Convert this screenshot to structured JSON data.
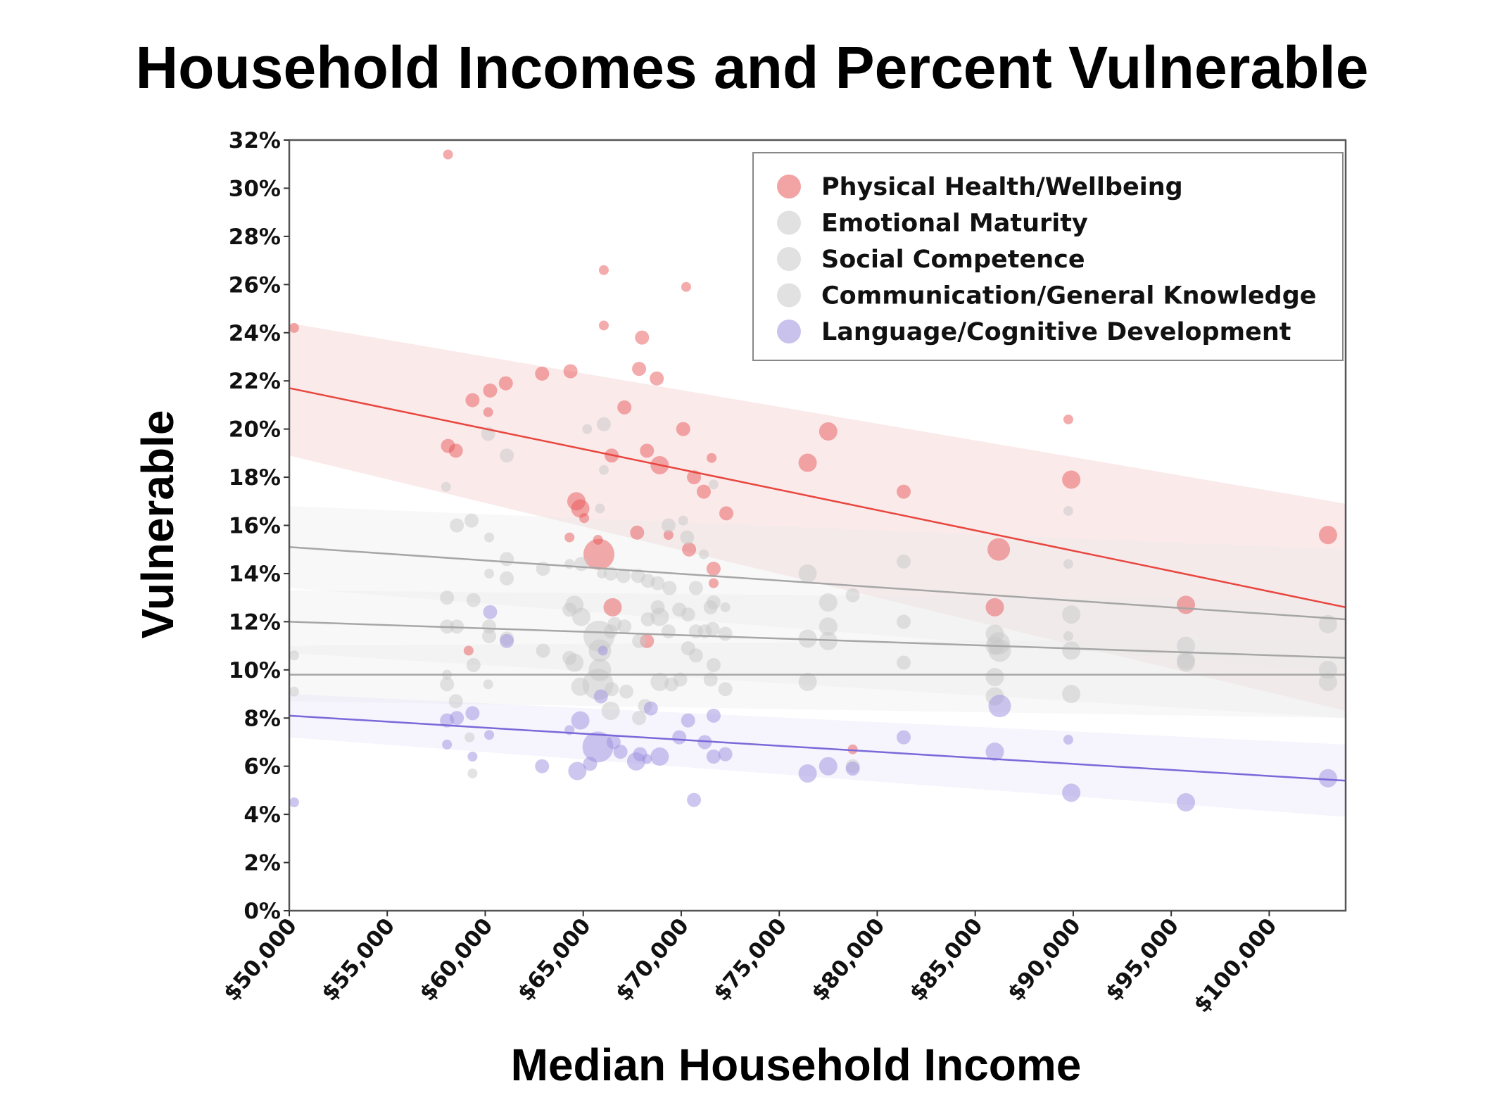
{
  "chart_data": {
    "type": "scatter",
    "title": "Household Incomes and Percent Vulnerable",
    "xlabel": "Median Household Income",
    "ylabel": "Vulnerable",
    "xlim": [
      50000,
      103900
    ],
    "ylim": [
      0,
      32
    ],
    "x_ticks": [
      50000,
      55000,
      60000,
      65000,
      70000,
      75000,
      80000,
      85000,
      90000,
      95000,
      100000
    ],
    "x_tick_labels": [
      "$50,000",
      "$55,000",
      "$60,000",
      "$65,000",
      "$70,000",
      "$75,000",
      "$80,000",
      "$85,000",
      "$90,000",
      "$95,000",
      "$100,000"
    ],
    "y_ticks": [
      0,
      2,
      4,
      6,
      8,
      10,
      12,
      14,
      16,
      18,
      20,
      22,
      24,
      26,
      28,
      30,
      32
    ],
    "y_tick_labels": [
      "0%",
      "2%",
      "4%",
      "6%",
      "8%",
      "10%",
      "12%",
      "14%",
      "16%",
      "18%",
      "20%",
      "22%",
      "24%",
      "26%",
      "28%",
      "30%",
      "32%"
    ],
    "grid": false,
    "legend_position": "top-right",
    "marker_size_meaning": "relative population size (bubble)",
    "series": [
      {
        "name": "Physical Health/Wellbeing",
        "color": "#e8575a",
        "line_color": "#e8463f",
        "band_color": "#f7d0d1",
        "trend": {
          "start": [
            50000,
            21.7
          ],
          "end": [
            103900,
            12.6
          ],
          "ci_start": [
            18.9,
            24.4
          ],
          "ci_end": [
            8.3,
            16.9
          ]
        },
        "points": [
          [
            50250,
            24.2,
            1
          ],
          [
            58100,
            31.4,
            1
          ],
          [
            58100,
            19.3,
            2
          ],
          [
            58500,
            19.1,
            2
          ],
          [
            59350,
            21.2,
            2
          ],
          [
            60250,
            21.6,
            2
          ],
          [
            60150,
            20.7,
            1
          ],
          [
            61050,
            21.9,
            2
          ],
          [
            62900,
            22.3,
            2
          ],
          [
            64350,
            22.4,
            2
          ],
          [
            64300,
            15.5,
            1
          ],
          [
            64650,
            17.0,
            3
          ],
          [
            64850,
            16.7,
            3
          ],
          [
            65050,
            16.3,
            1
          ],
          [
            65800,
            14.8,
            6
          ],
          [
            65750,
            15.4,
            1
          ],
          [
            66050,
            24.3,
            1
          ],
          [
            66050,
            26.6,
            1
          ],
          [
            66450,
            18.9,
            2
          ],
          [
            66500,
            12.6,
            3
          ],
          [
            67100,
            20.9,
            2
          ],
          [
            67750,
            15.7,
            2
          ],
          [
            67850,
            22.5,
            2
          ],
          [
            68000,
            23.8,
            2
          ],
          [
            68250,
            19.1,
            2
          ],
          [
            68250,
            11.2,
            2
          ],
          [
            68750,
            22.1,
            2
          ],
          [
            68900,
            18.5,
            3
          ],
          [
            69350,
            15.6,
            1
          ],
          [
            70100,
            20.0,
            2
          ],
          [
            70250,
            25.9,
            1
          ],
          [
            70400,
            15.0,
            2
          ],
          [
            70650,
            18.0,
            2
          ],
          [
            71150,
            17.4,
            2
          ],
          [
            71550,
            18.8,
            1
          ],
          [
            71650,
            13.6,
            1
          ],
          [
            71650,
            14.2,
            2
          ],
          [
            72300,
            16.5,
            2
          ],
          [
            59150,
            10.8,
            1
          ],
          [
            76450,
            18.6,
            3
          ],
          [
            77500,
            19.9,
            3
          ],
          [
            78750,
            6.7,
            1
          ],
          [
            81350,
            17.4,
            2
          ],
          [
            86000,
            12.6,
            3
          ],
          [
            86200,
            15.0,
            4
          ],
          [
            89750,
            20.4,
            1
          ],
          [
            89900,
            17.9,
            3
          ],
          [
            95750,
            12.7,
            3
          ],
          [
            103000,
            15.6,
            3
          ]
        ]
      },
      {
        "name": "Emotional Maturity",
        "color": "#c8c8c8",
        "line_color": "#a6a6a6",
        "band_color": "#ececec",
        "trend": {
          "start": [
            50000,
            15.1
          ],
          "end": [
            103900,
            12.1
          ],
          "ci_start": [
            13.4,
            16.8
          ],
          "ci_end": [
            9.9,
            15.0
          ]
        },
        "points": [
          [
            58000,
            17.6,
            1
          ],
          [
            58550,
            16.0,
            2
          ],
          [
            59300,
            16.2,
            2
          ],
          [
            60200,
            15.5,
            1
          ],
          [
            60200,
            14.0,
            1
          ],
          [
            61100,
            14.6,
            2
          ],
          [
            61100,
            13.8,
            2
          ],
          [
            62950,
            14.2,
            2
          ],
          [
            64300,
            14.4,
            1
          ],
          [
            64900,
            14.4,
            2
          ],
          [
            65850,
            16.7,
            1
          ],
          [
            65950,
            14.0,
            1
          ],
          [
            66400,
            14.0,
            2
          ],
          [
            67050,
            13.9,
            2
          ],
          [
            67800,
            13.9,
            2
          ],
          [
            68300,
            13.7,
            2
          ],
          [
            68800,
            13.6,
            2
          ],
          [
            69350,
            16.0,
            2
          ],
          [
            69400,
            13.4,
            2
          ],
          [
            70100,
            16.2,
            1
          ],
          [
            70300,
            15.5,
            2
          ],
          [
            70750,
            13.4,
            2
          ],
          [
            71150,
            14.8,
            1
          ],
          [
            71500,
            12.6,
            2
          ],
          [
            71650,
            17.7,
            1
          ],
          [
            72250,
            12.6,
            1
          ],
          [
            66050,
            20.2,
            2
          ],
          [
            65200,
            20.0,
            1
          ],
          [
            66050,
            18.3,
            1
          ],
          [
            60150,
            19.8,
            2
          ],
          [
            61100,
            18.9,
            2
          ],
          [
            76450,
            14.0,
            3
          ],
          [
            77500,
            12.8,
            3
          ],
          [
            78750,
            13.1,
            2
          ],
          [
            81350,
            14.5,
            2
          ],
          [
            86000,
            11.5,
            3
          ],
          [
            86200,
            11.1,
            4
          ],
          [
            89750,
            16.6,
            1
          ],
          [
            89750,
            14.4,
            1
          ],
          [
            89900,
            12.3,
            3
          ],
          [
            95750,
            11.0,
            3
          ],
          [
            103000,
            11.9,
            3
          ]
        ]
      },
      {
        "name": "Social Competence",
        "color": "#c8c8c8",
        "line_color": "#a6a6a6",
        "band_color": "#ececec",
        "trend": {
          "start": [
            50000,
            12.0
          ],
          "end": [
            103900,
            10.5
          ],
          "ci_start": [
            10.7,
            13.3
          ],
          "ci_end": [
            8.0,
            12.9
          ]
        },
        "points": [
          [
            50250,
            10.6,
            1
          ],
          [
            58050,
            13.0,
            2
          ],
          [
            58050,
            11.8,
            2
          ],
          [
            58550,
            11.8,
            2
          ],
          [
            59400,
            12.9,
            2
          ],
          [
            60200,
            11.8,
            2
          ],
          [
            60200,
            11.4,
            2
          ],
          [
            61100,
            11.3,
            2
          ],
          [
            62950,
            10.8,
            2
          ],
          [
            64300,
            12.5,
            2
          ],
          [
            64550,
            12.7,
            3
          ],
          [
            64900,
            12.2,
            3
          ],
          [
            65800,
            11.4,
            6
          ],
          [
            65850,
            10.8,
            4
          ],
          [
            66400,
            11.6,
            2
          ],
          [
            66600,
            11.9,
            2
          ],
          [
            67100,
            11.8,
            2
          ],
          [
            67850,
            11.2,
            2
          ],
          [
            68300,
            12.1,
            2
          ],
          [
            68800,
            12.6,
            2
          ],
          [
            68900,
            12.2,
            3
          ],
          [
            69350,
            11.6,
            2
          ],
          [
            69900,
            12.5,
            2
          ],
          [
            70350,
            12.3,
            2
          ],
          [
            70750,
            11.6,
            2
          ],
          [
            71200,
            11.6,
            2
          ],
          [
            71650,
            12.8,
            2
          ],
          [
            71600,
            11.7,
            2
          ],
          [
            72250,
            11.5,
            2
          ],
          [
            76450,
            11.3,
            3
          ],
          [
            77500,
            11.8,
            3
          ],
          [
            77500,
            11.2,
            3
          ],
          [
            81350,
            12.0,
            2
          ],
          [
            86000,
            11.0,
            3
          ],
          [
            86250,
            10.8,
            4
          ],
          [
            89750,
            11.4,
            1
          ],
          [
            89900,
            10.8,
            3
          ],
          [
            95750,
            10.4,
            3
          ],
          [
            103000,
            10.0,
            3
          ]
        ]
      },
      {
        "name": "Communication/General Knowledge",
        "color": "#c8c8c8",
        "line_color": "#a6a6a6",
        "band_color": "#ececec",
        "trend": {
          "start": [
            50000,
            9.8
          ],
          "end": [
            103900,
            9.8
          ],
          "ci_start": [
            8.7,
            11.0
          ],
          "ci_end": [
            8.0,
            11.3
          ]
        },
        "points": [
          [
            50250,
            9.1,
            1
          ],
          [
            58050,
            9.4,
            2
          ],
          [
            58050,
            9.8,
            1
          ],
          [
            58500,
            8.7,
            2
          ],
          [
            59200,
            7.2,
            1
          ],
          [
            59400,
            10.2,
            2
          ],
          [
            59350,
            5.7,
            1
          ],
          [
            60150,
            9.4,
            1
          ],
          [
            64300,
            10.5,
            2
          ],
          [
            64550,
            10.3,
            3
          ],
          [
            64850,
            9.3,
            3
          ],
          [
            65750,
            9.4,
            6
          ],
          [
            65850,
            10.0,
            4
          ],
          [
            66400,
            8.3,
            3
          ],
          [
            66450,
            9.2,
            2
          ],
          [
            67200,
            9.1,
            2
          ],
          [
            67850,
            8.0,
            2
          ],
          [
            68150,
            8.5,
            2
          ],
          [
            68900,
            9.5,
            3
          ],
          [
            69500,
            9.4,
            2
          ],
          [
            69950,
            9.6,
            2
          ],
          [
            70350,
            10.9,
            2
          ],
          [
            70750,
            10.6,
            2
          ],
          [
            71500,
            9.6,
            2
          ],
          [
            71650,
            10.2,
            2
          ],
          [
            72250,
            9.2,
            2
          ],
          [
            76450,
            9.5,
            3
          ],
          [
            78750,
            6.0,
            2
          ],
          [
            81350,
            10.3,
            2
          ],
          [
            86000,
            9.7,
            3
          ],
          [
            86000,
            8.9,
            3
          ],
          [
            89900,
            9.0,
            3
          ],
          [
            95750,
            10.3,
            3
          ],
          [
            103000,
            9.5,
            3
          ]
        ]
      },
      {
        "name": "Language/Cognitive Development",
        "color": "#9c8fdf",
        "line_color": "#7b68d9",
        "band_color": "#e4e0f5",
        "trend": {
          "start": [
            50000,
            8.1
          ],
          "end": [
            103900,
            5.4
          ],
          "ci_start": [
            7.2,
            9.0
          ],
          "ci_end": [
            3.9,
            6.9
          ]
        },
        "points": [
          [
            50250,
            4.5,
            1
          ],
          [
            58050,
            7.9,
            2
          ],
          [
            58050,
            6.9,
            1
          ],
          [
            58550,
            8.0,
            2
          ],
          [
            59350,
            8.2,
            2
          ],
          [
            59350,
            6.4,
            1
          ],
          [
            60250,
            12.4,
            2
          ],
          [
            60200,
            7.3,
            1
          ],
          [
            61100,
            11.2,
            2
          ],
          [
            62900,
            6.0,
            2
          ],
          [
            64300,
            7.5,
            1
          ],
          [
            64700,
            5.8,
            3
          ],
          [
            64850,
            7.9,
            3
          ],
          [
            65350,
            6.1,
            2
          ],
          [
            65750,
            6.8,
            6
          ],
          [
            66000,
            10.8,
            1
          ],
          [
            65900,
            8.9,
            2
          ],
          [
            66550,
            7.0,
            2
          ],
          [
            66900,
            6.6,
            2
          ],
          [
            67700,
            6.2,
            3
          ],
          [
            67900,
            6.5,
            2
          ],
          [
            68250,
            6.3,
            1
          ],
          [
            68450,
            8.4,
            2
          ],
          [
            68900,
            6.4,
            3
          ],
          [
            69900,
            7.2,
            2
          ],
          [
            70350,
            7.9,
            2
          ],
          [
            70650,
            4.6,
            2
          ],
          [
            71200,
            7.0,
            2
          ],
          [
            71650,
            8.1,
            2
          ],
          [
            71650,
            6.4,
            2
          ],
          [
            72250,
            6.5,
            2
          ],
          [
            76450,
            5.7,
            3
          ],
          [
            77500,
            6.0,
            3
          ],
          [
            78750,
            5.9,
            2
          ],
          [
            81350,
            7.2,
            2
          ],
          [
            86000,
            6.6,
            3
          ],
          [
            86250,
            8.5,
            4
          ],
          [
            89750,
            7.1,
            1
          ],
          [
            89900,
            4.9,
            3
          ],
          [
            95750,
            4.5,
            3
          ],
          [
            103000,
            5.5,
            3
          ]
        ]
      }
    ]
  }
}
